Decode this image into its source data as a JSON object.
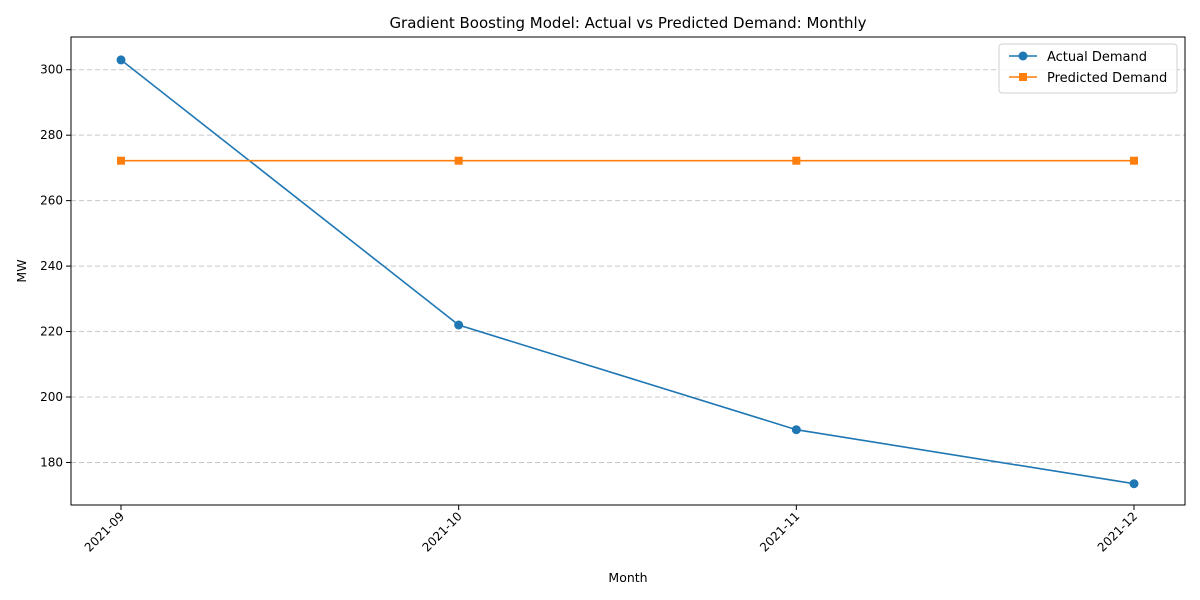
{
  "chart_data": {
    "type": "line",
    "title": "Gradient Boosting Model: Actual vs Predicted Demand: Monthly",
    "xlabel": "Month",
    "ylabel": "MW",
    "categories": [
      "2021-09",
      "2021-10",
      "2021-11",
      "2021-12"
    ],
    "ylim": [
      167,
      310
    ],
    "yticks": [
      180,
      200,
      220,
      240,
      260,
      280,
      300
    ],
    "grid": "y-dashed",
    "legend": "top-right",
    "series": [
      {
        "name": "Actual Demand",
        "values": [
          303,
          222,
          190,
          173.5
        ],
        "color": "#1f77b4",
        "marker": "circle"
      },
      {
        "name": "Predicted Demand",
        "values": [
          272.2,
          272.2,
          272.2,
          272.2
        ],
        "color": "#ff7f0e",
        "marker": "square"
      }
    ]
  }
}
